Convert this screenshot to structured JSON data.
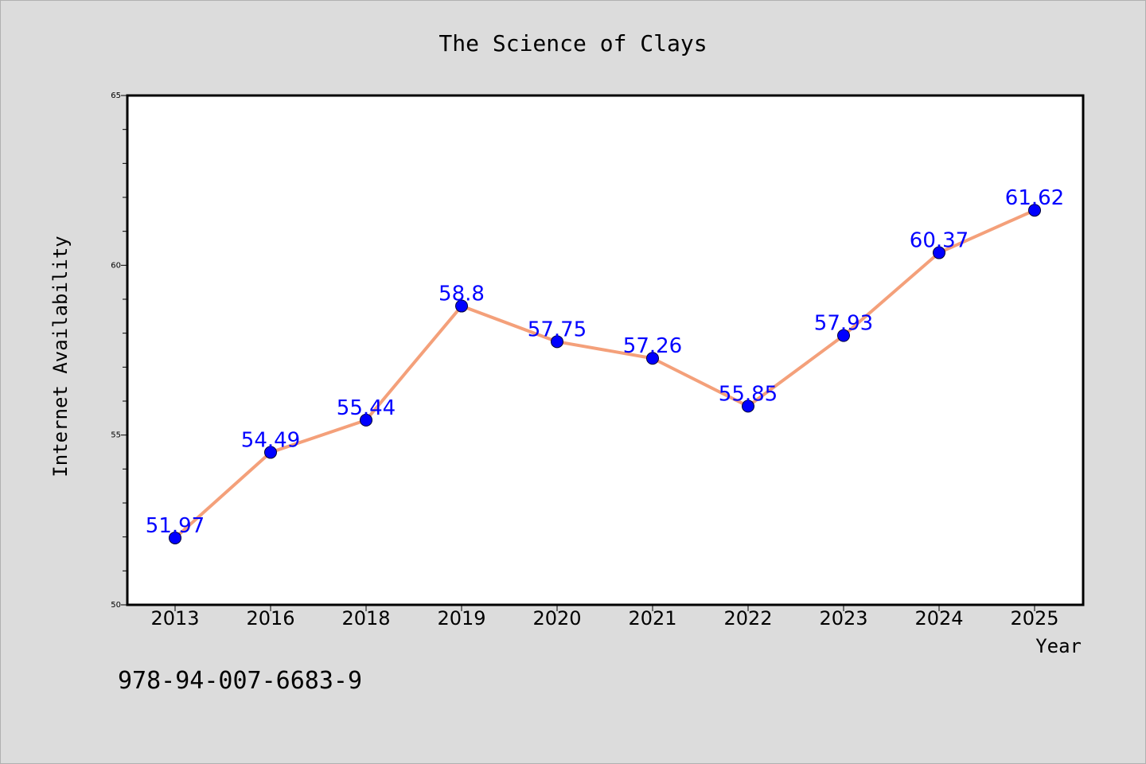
{
  "colors": {
    "background": "#dcdcdc",
    "plot_background": "#ffffff",
    "line": "#f4a07a",
    "marker": "#0000ff",
    "label": "#0000ff"
  },
  "footer": {
    "text": "978-94-007-6683-9"
  },
  "chart_data": {
    "type": "line",
    "title": "The Science of Clays",
    "xlabel": "Year",
    "ylabel": "Internet Availability",
    "categories": [
      "2013",
      "2016",
      "2018",
      "2019",
      "2020",
      "2021",
      "2022",
      "2023",
      "2024",
      "2025"
    ],
    "series": [
      {
        "values": [
          51.97,
          54.49,
          55.44,
          58.8,
          57.75,
          57.26,
          55.85,
          57.93,
          60.37,
          61.62
        ],
        "data_labels": [
          "51.97",
          "54.49",
          "55.44",
          "58.8",
          "57.75",
          "57.26",
          "55.85",
          "57.93",
          "60.37",
          "61.62"
        ]
      }
    ],
    "ylim": [
      50,
      65
    ],
    "yticks": [
      "50",
      "55",
      "60",
      "65"
    ],
    "grid": false,
    "legend": "none"
  }
}
